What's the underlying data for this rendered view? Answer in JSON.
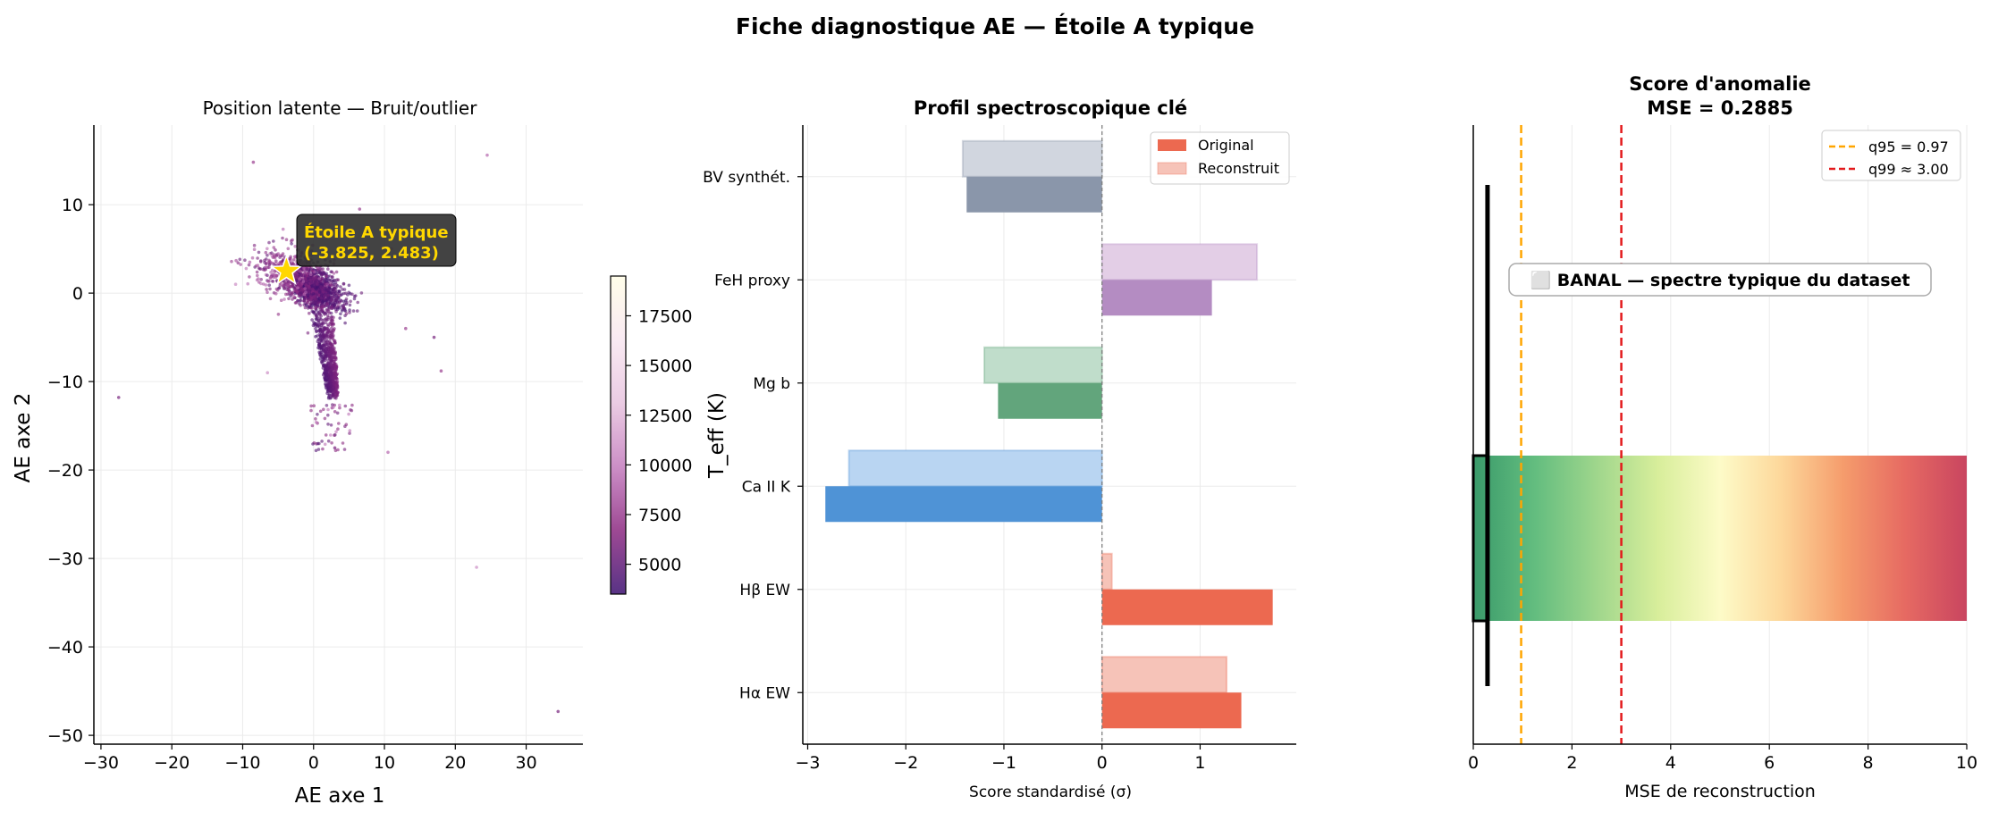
{
  "figure": {
    "title": "Fiche diagnostique AE — Étoile A typique"
  },
  "chart_data": [
    {
      "type": "scatter",
      "title": "Position latente — Bruit/outlier",
      "xlabel": "AE axe 1",
      "ylabel": "AE axe 2",
      "xlim": [
        -31,
        38
      ],
      "ylim": [
        -51,
        19
      ],
      "xticks": [
        -30,
        -20,
        -10,
        0,
        10,
        20,
        30
      ],
      "yticks": [
        -50,
        -40,
        -30,
        -20,
        -10,
        0,
        10
      ],
      "xtick_labels": [
        "−30",
        "−20",
        "−10",
        "0",
        "10",
        "20",
        "30"
      ],
      "ytick_labels": [
        "−50",
        "−40",
        "−30",
        "−20",
        "−10",
        "0",
        "10"
      ],
      "grid": true,
      "highlight": {
        "x": -3.825,
        "y": 2.483,
        "label": "Étoile A typique",
        "coords_label": "(-3.825, 2.483)",
        "marker": "star",
        "color": "#ffd700"
      },
      "outliers": [
        {
          "x": -27.5,
          "y": -11.8
        },
        {
          "x": -8.5,
          "y": 14.8
        },
        {
          "x": 24.5,
          "y": 15.6
        },
        {
          "x": -6.5,
          "y": -9.0
        },
        {
          "x": 17.0,
          "y": -5.0
        },
        {
          "x": 18.0,
          "y": -8.8
        },
        {
          "x": 10.5,
          "y": -18.0
        },
        {
          "x": 23.0,
          "y": -31.0
        },
        {
          "x": 34.5,
          "y": -47.3
        },
        {
          "x": 6.5,
          "y": 9.5
        },
        {
          "x": 11.0,
          "y": 5.0
        },
        {
          "x": -11.0,
          "y": 1.0
        },
        {
          "x": 3.0,
          "y": -17.5
        },
        {
          "x": 13.0,
          "y": -4.0
        },
        {
          "x": -9.0,
          "y": 3.5
        }
      ],
      "cluster": {
        "n_points": 2200,
        "shape": "dense blob centred near (0, 1) with a tail extending down to about (3, -18)"
      },
      "colorbar": {
        "label": "T_eff (K)",
        "range": [
          3500,
          19500
        ],
        "ticks": [
          5000,
          7500,
          10000,
          12500,
          15000,
          17500
        ],
        "colormap": [
          "#3b0f70",
          "#8c2981",
          "#c37bbd",
          "#e7c2de",
          "#f8e6f0",
          "#fffde6"
        ]
      }
    },
    {
      "type": "bar",
      "orientation": "horizontal",
      "title": "Profil spectroscopique clé",
      "xlabel": "Score standardisé (σ)",
      "xlim": [
        -3.05,
        1.98
      ],
      "xticks": [
        -3,
        -2,
        -1,
        0,
        1
      ],
      "xtick_labels": [
        "−3",
        "−2",
        "−1",
        "0",
        "1"
      ],
      "categories": [
        "BV synthét.",
        "FeH proxy",
        "Mg b",
        "Ca II K",
        "Hβ EW",
        "Hα EW"
      ],
      "series": [
        {
          "name": "Original",
          "values": [
            -1.38,
            1.12,
            -1.06,
            -2.82,
            1.74,
            1.42
          ]
        },
        {
          "name": "Reconstruit",
          "values": [
            -1.42,
            1.58,
            -1.2,
            -2.58,
            0.1,
            1.27
          ]
        }
      ],
      "colors": {
        "original": [
          "#8a96aa",
          "#b48cc2",
          "#62a57c",
          "#4f93d6",
          "#ec6950",
          "#ec6950"
        ],
        "reconstruit": [
          "#d1d6df",
          "#e3cee6",
          "#c0ddcb",
          "#b9d5f2",
          "#f6c3b8",
          "#f6c3b8"
        ],
        "legend_original": "#ec6950",
        "legend_reconstruit": "#f6c3b8"
      },
      "legend_position": "top-right",
      "grid": true
    },
    {
      "type": "bar",
      "orientation": "horizontal",
      "title_line1": "Score d'anomalie",
      "title_line2": "MSE = 0.2885",
      "xlabel": "MSE de reconstruction",
      "xlim": [
        0,
        10
      ],
      "xticks": [
        0,
        2,
        4,
        6,
        8,
        10
      ],
      "mse": 0.2885,
      "gradient_colors": [
        "#3a9a6a",
        "#63bd7f",
        "#9fd68c",
        "#d8ee9b",
        "#fdfbc8",
        "#fdd79a",
        "#f59c6c",
        "#e66a62",
        "#c94560"
      ],
      "verdict": "⬜ BANAL — spectre typique du dataset",
      "thresholds": [
        {
          "name": "q95 = 0.97",
          "value": 0.97,
          "color": "#ffa500"
        },
        {
          "name": "q99 ≈ 3.00",
          "value": 3.0,
          "color": "#e31a1c"
        }
      ],
      "legend_position": "top-right",
      "grid": true
    }
  ]
}
